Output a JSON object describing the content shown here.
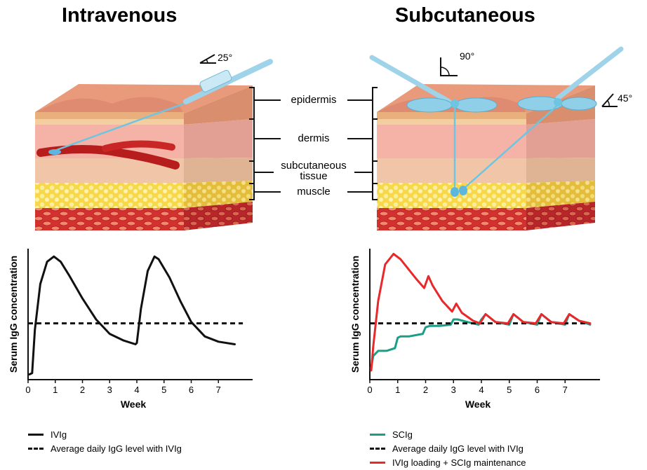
{
  "headings": {
    "left": "Intravenous",
    "right": "Subcutaneous"
  },
  "angles": {
    "iv": "25°",
    "sc_vertical": "90°",
    "sc_angled": "45°"
  },
  "layers": [
    "epidermis",
    "dermis",
    "subcutaneous\ntissue",
    "muscle"
  ],
  "colors": {
    "ivig": "#111111",
    "average": "#111111",
    "scig": "#1a9e86",
    "loading": "#e8282a",
    "needle": "#9fd3ea"
  },
  "chart_data": [
    {
      "type": "line",
      "xlabel": "Week",
      "ylabel": "Serum IgG concentration",
      "xlim": [
        0,
        8
      ],
      "ylim": [
        0,
        10
      ],
      "xticks": [
        0,
        1,
        2,
        3,
        4,
        5,
        6,
        7
      ],
      "series": [
        {
          "name": "IVIg",
          "style": "solid",
          "color": "#111111",
          "x": [
            0.05,
            0.15,
            0.25,
            0.45,
            0.7,
            0.95,
            1.2,
            1.5,
            2.0,
            2.5,
            3.0,
            3.5,
            3.95,
            4.0,
            4.15,
            4.4,
            4.65,
            4.8,
            5.2,
            5.6,
            6.0,
            6.5,
            7.0,
            7.6
          ],
          "y": [
            0.4,
            0.5,
            3.8,
            7.3,
            9.0,
            9.4,
            9.0,
            8.0,
            6.2,
            4.6,
            3.5,
            3.0,
            2.7,
            2.8,
            5.4,
            8.3,
            9.4,
            9.2,
            7.8,
            6.0,
            4.4,
            3.3,
            2.9,
            2.7
          ]
        },
        {
          "name": "Average daily IgG level with IVIg",
          "style": "dashed",
          "color": "#111111",
          "x": [
            0,
            7.9
          ],
          "y": [
            4.3,
            4.3
          ]
        }
      ]
    },
    {
      "type": "line",
      "xlabel": "Week",
      "ylabel": "Serum IgG concentration",
      "xlim": [
        0,
        8
      ],
      "ylim": [
        0,
        10
      ],
      "xticks": [
        0,
        1,
        2,
        3,
        4,
        5,
        6,
        7
      ],
      "series": [
        {
          "name": "SCIg",
          "style": "solid",
          "color": "#1a9e86",
          "x": [
            0.05,
            0.12,
            0.3,
            0.6,
            0.9,
            1.0,
            1.1,
            1.4,
            1.9,
            2.0,
            2.15,
            2.5,
            2.9,
            3.0,
            3.15,
            3.5,
            3.9,
            4.0,
            4.15,
            4.5,
            5.0,
            5.15,
            5.5,
            6.0,
            6.15,
            6.5,
            7.0,
            7.15,
            7.5,
            7.9
          ],
          "y": [
            0.9,
            1.8,
            2.2,
            2.2,
            2.4,
            3.2,
            3.3,
            3.3,
            3.5,
            4.0,
            4.1,
            4.1,
            4.2,
            4.6,
            4.6,
            4.4,
            4.2,
            4.6,
            5.0,
            4.4,
            4.2,
            5.0,
            4.4,
            4.2,
            5.0,
            4.4,
            4.2,
            5.0,
            4.5,
            4.2
          ]
        },
        {
          "name": "Average daily IgG level with IVIg",
          "style": "dashed",
          "color": "#111111",
          "x": [
            0,
            7.9
          ],
          "y": [
            4.3,
            4.3
          ]
        },
        {
          "name": "IVIg loading + SCIg maintenance",
          "style": "solid",
          "color": "#e8282a",
          "x": [
            0.05,
            0.12,
            0.3,
            0.55,
            0.85,
            1.1,
            1.4,
            1.7,
            1.95,
            2.1,
            2.25,
            2.6,
            2.95,
            3.1,
            3.3,
            3.7,
            3.95,
            4.15,
            4.5,
            4.95,
            5.15,
            5.5,
            5.95,
            6.15,
            6.5,
            6.95,
            7.15,
            7.5,
            7.9
          ],
          "y": [
            0.7,
            2.5,
            6.0,
            8.8,
            9.6,
            9.2,
            8.4,
            7.6,
            7.0,
            7.9,
            7.2,
            6.0,
            5.2,
            5.8,
            5.1,
            4.5,
            4.3,
            5.0,
            4.4,
            4.3,
            5.0,
            4.4,
            4.3,
            5.0,
            4.4,
            4.3,
            5.0,
            4.5,
            4.3
          ]
        }
      ]
    }
  ],
  "legends": {
    "left": [
      "IVIg",
      "Average daily IgG level with IVIg"
    ],
    "right": [
      "SCIg",
      "Average daily IgG level with IVIg",
      "IVIg loading + SCIg maintenance"
    ]
  }
}
